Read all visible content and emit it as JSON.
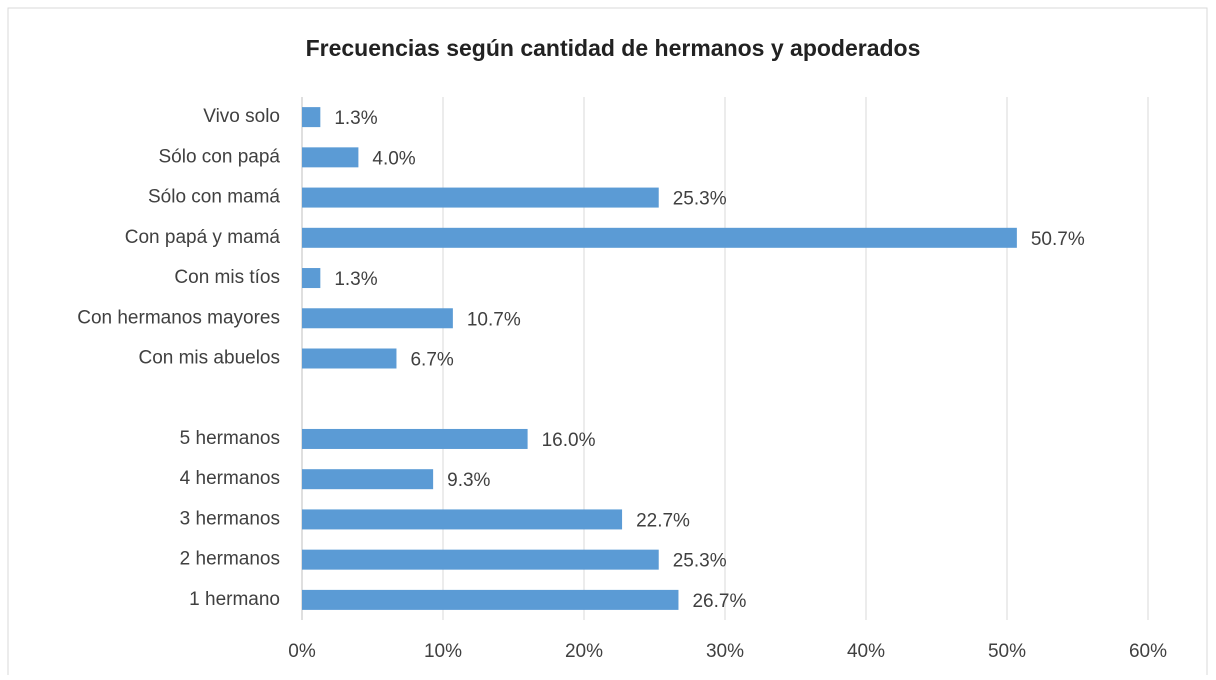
{
  "chart_data": {
    "type": "bar",
    "orientation": "horizontal",
    "title": "Frecuencias según cantidad de hermanos y apoderados",
    "categories": [
      "Vivo solo",
      "Sólo con papá",
      "Sólo con mamá",
      "Con papá y mamá",
      "Con mis tíos",
      "Con hermanos mayores",
      "Con mis abuelos",
      null,
      "5 hermanos",
      "4 hermanos",
      "3 hermanos",
      "2 hermanos",
      "1 hermano"
    ],
    "values": [
      1.3,
      4.0,
      25.3,
      50.7,
      1.3,
      10.7,
      6.7,
      null,
      16.0,
      9.3,
      22.7,
      25.3,
      26.7
    ],
    "value_labels": [
      "1.3%",
      "4.0%",
      "25.3%",
      "50.7%",
      "1.3%",
      "10.7%",
      "6.7%",
      null,
      "16.0%",
      "9.3%",
      "22.7%",
      "25.3%",
      "26.7%"
    ],
    "color": "#5b9bd5",
    "xlim": [
      0,
      60
    ],
    "xticks": [
      {
        "value": 0,
        "label": "0%"
      },
      {
        "value": 10,
        "label": "10%"
      },
      {
        "value": 20,
        "label": "20%"
      },
      {
        "value": 30,
        "label": "30%"
      },
      {
        "value": 40,
        "label": "40%"
      },
      {
        "value": 50,
        "label": "50%"
      },
      {
        "value": 60,
        "label": "60%"
      }
    ],
    "grid": true
  }
}
